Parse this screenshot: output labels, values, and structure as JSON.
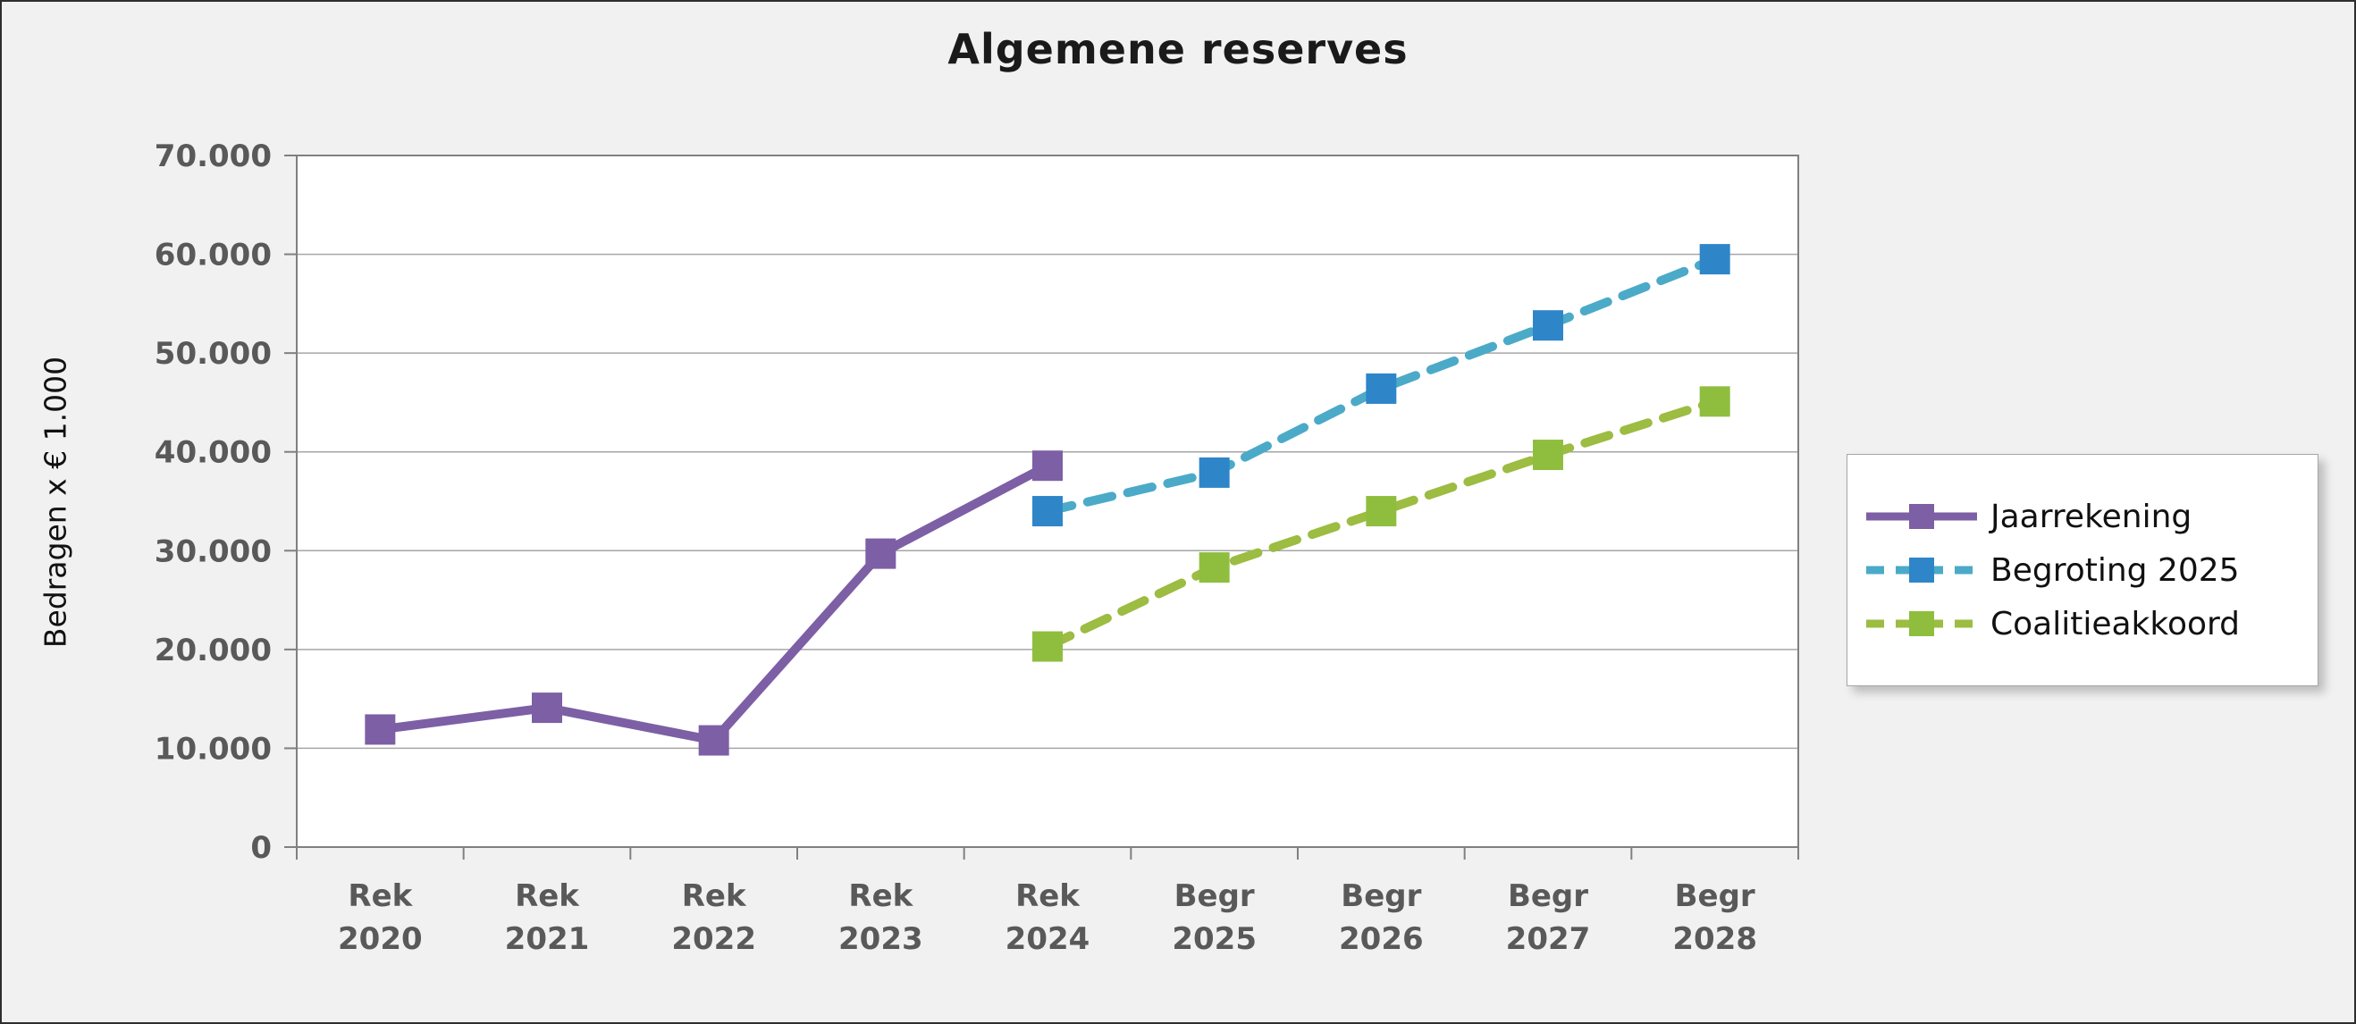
{
  "chart_data": {
    "type": "line",
    "title": "Algemene reserves",
    "ylabel": "Bedragen x € 1.000",
    "categories": [
      [
        "Rek",
        "2020"
      ],
      [
        "Rek",
        "2021"
      ],
      [
        "Rek",
        "2022"
      ],
      [
        "Rek",
        "2023"
      ],
      [
        "Rek",
        "2024"
      ],
      [
        "Begr",
        "2025"
      ],
      [
        "Begr",
        "2026"
      ],
      [
        "Begr",
        "2027"
      ],
      [
        "Begr",
        "2028"
      ]
    ],
    "ylim": [
      0,
      70000
    ],
    "ytick_step": 10000,
    "ytick_labels": [
      "0",
      "10.000",
      "20.000",
      "30.000",
      "40.000",
      "50.000",
      "60.000",
      "70.000"
    ],
    "grid": true,
    "legend_position": "right",
    "series": [
      {
        "name": "Jaarrekening",
        "line_color": "#7D5FA5",
        "marker_color": "#7D5FA5",
        "dash": "solid",
        "values": [
          11900,
          14100,
          10800,
          29700,
          38600,
          null,
          null,
          null,
          null
        ]
      },
      {
        "name": "Begroting 2025",
        "line_color": "#4BAAC8",
        "marker_color": "#2E86C9",
        "dash": "dashed",
        "values": [
          null,
          null,
          null,
          null,
          34000,
          37900,
          46400,
          52800,
          59500
        ]
      },
      {
        "name": "Coalitieakkoord",
        "line_color": "#9CBC42",
        "marker_color": "#8FBE3F",
        "dash": "dashed",
        "values": [
          null,
          null,
          null,
          null,
          20300,
          28300,
          34000,
          39700,
          45100
        ]
      }
    ],
    "colors": {
      "background": "#F1F1F1",
      "plot_background": "#FFFFFF",
      "gridline": "#A6A6A6",
      "axis": "#808080",
      "tick_label": "#595959",
      "title": "#1A1A1A"
    }
  }
}
